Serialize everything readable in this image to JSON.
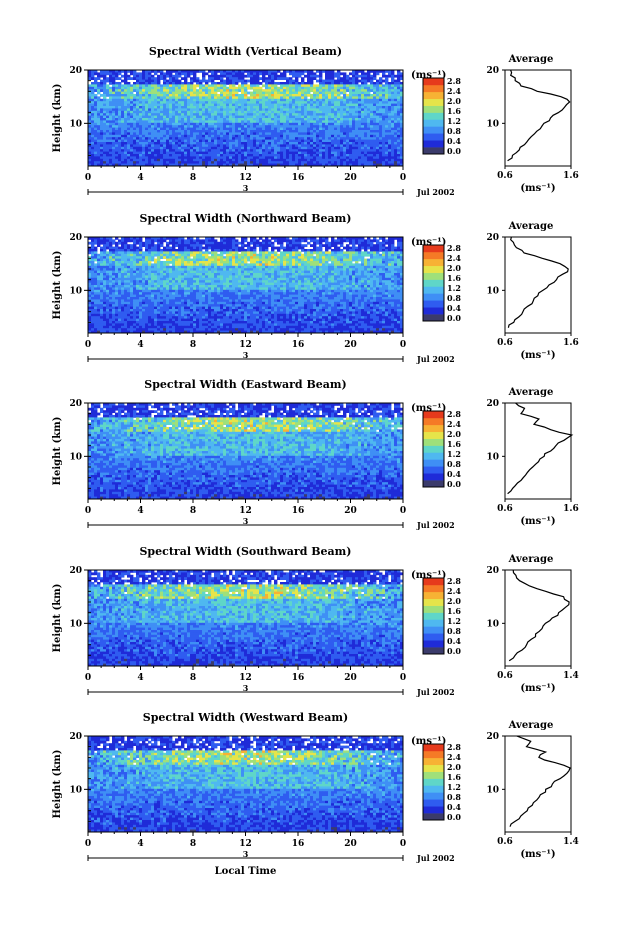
{
  "figure": {
    "ylabel": "Height (km)",
    "xlabel": "Local Time",
    "date_label": "Jul 2002",
    "day_label": "3",
    "units_label": "(ms⁻¹)",
    "avg_title": "Average",
    "avg_xlabel": "(ms⁻¹)"
  },
  "colorbar": {
    "ticks": [
      "0.0",
      "0.4",
      "0.8",
      "1.2",
      "1.6",
      "2.0",
      "2.4",
      "2.8"
    ],
    "colors": [
      "#3b3b6b",
      "#1f2bd8",
      "#2f5cf0",
      "#3f8ff5",
      "#4fb8f0",
      "#5fd6c8",
      "#9fe07a",
      "#e6e44a",
      "#f7b234",
      "#f57a26",
      "#e63a1c"
    ]
  },
  "chart_data": [
    {
      "type": "heatmap",
      "title": "Spectral Width (Vertical Beam)",
      "xlabel": "Local Time",
      "ylabel": "Height (km)",
      "x_ticks": [
        "0",
        "4",
        "8",
        "12",
        "16",
        "20",
        "0"
      ],
      "y_ticks": [
        "20",
        "10"
      ],
      "xlim": [
        0,
        24
      ],
      "ylim": [
        2,
        20
      ],
      "avg_profile": {
        "title": "Average",
        "x_ticks": [
          "0.6",
          "1.6"
        ],
        "xlim": [
          0.6,
          1.6
        ],
        "y_ticks": [
          "20",
          "10"
        ],
        "heights": [
          3,
          4,
          5,
          6,
          7,
          8,
          9,
          10,
          11,
          12,
          13,
          14,
          15,
          16,
          17,
          18,
          19,
          20
        ],
        "values": [
          0.65,
          0.72,
          0.8,
          0.88,
          0.95,
          1.05,
          1.12,
          1.2,
          1.3,
          1.4,
          1.5,
          1.58,
          1.45,
          1.1,
          0.85,
          0.75,
          0.7,
          0.68
        ]
      }
    },
    {
      "type": "heatmap",
      "title": "Spectral Width (Northward Beam)",
      "xlabel": "Local Time",
      "ylabel": "Height (km)",
      "x_ticks": [
        "0",
        "4",
        "8",
        "12",
        "16",
        "20",
        "0"
      ],
      "y_ticks": [
        "20",
        "10"
      ],
      "xlim": [
        0,
        24
      ],
      "ylim": [
        2,
        20
      ],
      "avg_profile": {
        "title": "Average",
        "x_ticks": [
          "0.6",
          "1.6"
        ],
        "xlim": [
          0.6,
          1.6
        ],
        "y_ticks": [
          "20",
          "10"
        ],
        "heights": [
          3,
          4,
          5,
          6,
          7,
          8,
          9,
          10,
          11,
          12,
          13,
          14,
          15,
          16,
          17,
          18,
          19,
          20
        ],
        "values": [
          0.65,
          0.72,
          0.8,
          0.88,
          0.95,
          1.02,
          1.1,
          1.18,
          1.28,
          1.38,
          1.48,
          1.56,
          1.42,
          1.15,
          0.9,
          0.78,
          0.72,
          0.7
        ]
      }
    },
    {
      "type": "heatmap",
      "title": "Spectral Width (Eastward Beam)",
      "xlabel": "Local Time",
      "ylabel": "Height (km)",
      "x_ticks": [
        "0",
        "4",
        "8",
        "12",
        "16",
        "20",
        "0"
      ],
      "y_ticks": [
        "20",
        "10"
      ],
      "xlim": [
        0,
        24
      ],
      "ylim": [
        2,
        20
      ],
      "avg_profile": {
        "title": "Average",
        "x_ticks": [
          "0.6",
          "1.6"
        ],
        "xlim": [
          0.6,
          1.6
        ],
        "y_ticks": [
          "20",
          "10"
        ],
        "heights": [
          3,
          4,
          5,
          6,
          7,
          8,
          9,
          10,
          11,
          12,
          13,
          14,
          15,
          16,
          17,
          18,
          19,
          20
        ],
        "values": [
          0.65,
          0.72,
          0.8,
          0.88,
          0.95,
          1.02,
          1.1,
          1.18,
          1.28,
          1.38,
          1.48,
          1.6,
          1.3,
          1.05,
          1.1,
          0.85,
          0.9,
          0.75
        ]
      }
    },
    {
      "type": "heatmap",
      "title": "Spectral Width (Southward Beam)",
      "xlabel": "Local Time",
      "ylabel": "Height (km)",
      "x_ticks": [
        "0",
        "4",
        "8",
        "12",
        "16",
        "20",
        "0"
      ],
      "y_ticks": [
        "20",
        "10"
      ],
      "xlim": [
        0,
        24
      ],
      "ylim": [
        2,
        20
      ],
      "avg_profile": {
        "title": "Average",
        "x_ticks": [
          "0.6",
          "1.4"
        ],
        "xlim": [
          0.6,
          1.4
        ],
        "y_ticks": [
          "20",
          "10"
        ],
        "heights": [
          3,
          4,
          5,
          6,
          7,
          8,
          9,
          10,
          11,
          12,
          13,
          14,
          15,
          16,
          17,
          18,
          19,
          20
        ],
        "values": [
          0.65,
          0.72,
          0.8,
          0.86,
          0.92,
          0.98,
          1.04,
          1.1,
          1.18,
          1.26,
          1.34,
          1.38,
          1.3,
          1.1,
          0.9,
          0.78,
          0.72,
          0.7
        ]
      }
    },
    {
      "type": "heatmap",
      "title": "Spectral Width (Westward Beam)",
      "xlabel": "Local Time",
      "ylabel": "Height (km)",
      "x_ticks": [
        "0",
        "4",
        "8",
        "12",
        "16",
        "20",
        "0"
      ],
      "y_ticks": [
        "20",
        "10"
      ],
      "xlim": [
        0,
        24
      ],
      "ylim": [
        2,
        20
      ],
      "avg_profile": {
        "title": "Average",
        "x_ticks": [
          "0.6",
          "1.4"
        ],
        "xlim": [
          0.6,
          1.4
        ],
        "y_ticks": [
          "20",
          "10"
        ],
        "heights": [
          3,
          4,
          5,
          6,
          7,
          8,
          9,
          10,
          11,
          12,
          13,
          14,
          15,
          16,
          17,
          18,
          19,
          20
        ],
        "values": [
          0.65,
          0.72,
          0.8,
          0.86,
          0.92,
          0.98,
          1.04,
          1.1,
          1.18,
          1.26,
          1.34,
          1.4,
          1.2,
          1.0,
          1.1,
          0.85,
          0.9,
          0.75
        ]
      }
    }
  ]
}
